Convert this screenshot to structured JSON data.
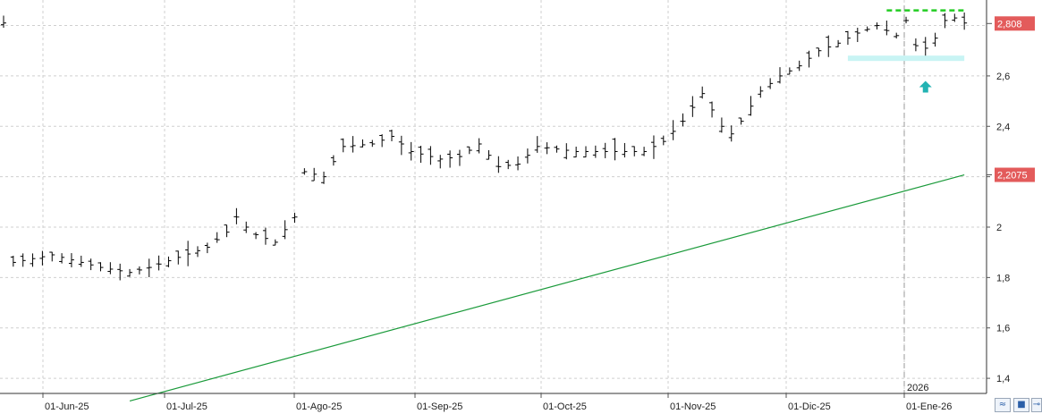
{
  "chart_data": {
    "type": "ohlc-line",
    "x_tick_labels": [
      "01-Jun-25",
      "01-Jul-25",
      "01-Ago-25",
      "01-Sep-25",
      "01-Oct-25",
      "01-Nov-25",
      "01-Dic-25",
      "01-Ene-26"
    ],
    "year_marker": "2026",
    "y_tick_labels": [
      "1,4",
      "1,6",
      "1,8",
      "2",
      "2,2",
      "2,4",
      "2,6"
    ],
    "ylim": [
      1.34,
      2.88
    ],
    "grid": true,
    "price_close_label": "2,808",
    "moving_average_label": "2,2075",
    "price_series": {
      "color": "#000000",
      "anchors": [
        [
          1,
          1.86
        ],
        [
          5,
          1.89
        ],
        [
          8,
          1.86
        ],
        [
          10,
          1.84
        ],
        [
          13,
          1.82
        ],
        [
          15,
          1.84
        ],
        [
          18,
          1.88
        ],
        [
          21,
          1.92
        ],
        [
          23,
          1.98
        ],
        [
          24,
          2.04
        ],
        [
          25,
          2.0
        ],
        [
          26,
          1.97
        ],
        [
          28,
          1.94
        ],
        [
          30,
          2.04
        ],
        [
          31,
          2.22
        ],
        [
          33,
          2.2
        ],
        [
          35,
          2.32
        ],
        [
          38,
          2.33
        ],
        [
          40,
          2.36
        ],
        [
          42,
          2.3
        ],
        [
          45,
          2.27
        ],
        [
          47,
          2.28
        ],
        [
          49,
          2.33
        ],
        [
          51,
          2.24
        ],
        [
          53,
          2.25
        ],
        [
          55,
          2.32
        ],
        [
          57,
          2.31
        ],
        [
          59,
          2.3
        ],
        [
          61,
          2.3
        ],
        [
          63,
          2.3
        ],
        [
          66,
          2.3
        ],
        [
          68,
          2.34
        ],
        [
          70,
          2.42
        ],
        [
          72,
          2.53
        ],
        [
          74,
          2.4
        ],
        [
          75,
          2.37
        ],
        [
          76,
          2.42
        ],
        [
          78,
          2.54
        ],
        [
          80,
          2.6
        ],
        [
          82,
          2.64
        ],
        [
          84,
          2.7
        ],
        [
          86,
          2.73
        ],
        [
          88,
          2.77
        ],
        [
          90,
          2.8
        ],
        [
          92,
          2.76
        ],
        [
          93,
          2.82
        ],
        [
          94,
          2.72
        ],
        [
          95,
          2.71
        ],
        [
          96,
          2.75
        ],
        [
          97,
          2.82
        ],
        [
          98,
          2.83
        ],
        [
          99,
          2.81
        ]
      ]
    },
    "moving_average": {
      "color": "#1a9a3a",
      "start": [
        13,
        1.31
      ],
      "end": [
        99,
        2.2075
      ]
    },
    "annotations": {
      "resistance_line": {
        "color": "#22cc22",
        "y": 2.86,
        "from": 91,
        "to": 99
      },
      "support_band": {
        "color": "#c8f4f4",
        "y": 2.67,
        "from": 87,
        "to": 99
      },
      "up_arrow": {
        "color": "#22b3b3",
        "index": 95,
        "y": 2.58
      }
    }
  },
  "toolbar": {
    "chart_icon": "chart-icon",
    "save_icon": "save-icon",
    "pin_icon": "pin-icon"
  }
}
